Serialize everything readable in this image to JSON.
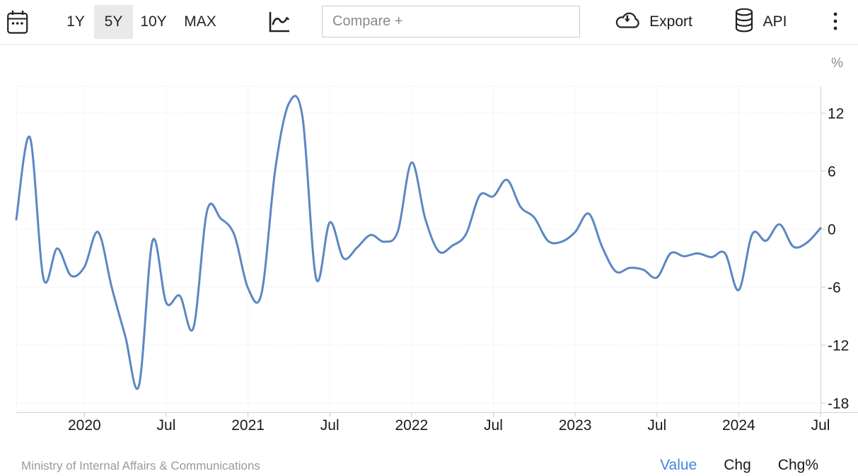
{
  "toolbar": {
    "range_buttons": [
      {
        "label": "1Y",
        "selected": false
      },
      {
        "label": "5Y",
        "selected": true
      },
      {
        "label": "10Y",
        "selected": false
      },
      {
        "label": "MAX",
        "selected": false
      }
    ],
    "compare_placeholder": "Compare +",
    "export_label": "Export",
    "api_label": "API",
    "icons": [
      "calendar-icon",
      "line-chart-icon",
      "cloud-download-icon",
      "database-icon",
      "kebab-menu-icon"
    ]
  },
  "footer": {
    "source": "Ministry of Internal Affairs & Communications",
    "links": [
      {
        "label": "Value",
        "active": true
      },
      {
        "label": "Chg",
        "active": false
      },
      {
        "label": "Chg%",
        "active": false
      }
    ]
  },
  "colors": {
    "line": "#5b87c3",
    "accent_blue": "#4285e0",
    "grid": "#dcdcdc",
    "axis": "#d2d2d2",
    "tick_text": "#1a1a1a",
    "unit_text": "#8f8f8f",
    "selected_range_bg": "#e9e9e9"
  },
  "chart_data": {
    "type": "line",
    "title": "",
    "unit": "%",
    "line_color": "#5b87c3",
    "legend": "none",
    "grid": "dotted",
    "y_axis_side": "right",
    "ylim": [
      -19,
      14.8
    ],
    "y_ticks": [
      12,
      6,
      0,
      -6,
      -12,
      -18
    ],
    "x_tick_labels": [
      "2020",
      "Jul",
      "2021",
      "Jul",
      "2022",
      "Jul",
      "2023",
      "Jul",
      "2024",
      "Jul"
    ],
    "x": [
      "2019-08",
      "2019-09",
      "2019-10",
      "2019-11",
      "2019-12",
      "2020-01",
      "2020-02",
      "2020-03",
      "2020-04",
      "2020-05",
      "2020-06",
      "2020-07",
      "2020-08",
      "2020-09",
      "2020-10",
      "2020-11",
      "2020-12",
      "2021-01",
      "2021-02",
      "2021-03",
      "2021-04",
      "2021-05",
      "2021-06",
      "2021-07",
      "2021-08",
      "2021-09",
      "2021-10",
      "2021-11",
      "2021-12",
      "2022-01",
      "2022-02",
      "2022-03",
      "2022-04",
      "2022-05",
      "2022-06",
      "2022-07",
      "2022-08",
      "2022-09",
      "2022-10",
      "2022-11",
      "2022-12",
      "2023-01",
      "2023-02",
      "2023-03",
      "2023-04",
      "2023-05",
      "2023-06",
      "2023-07",
      "2023-08",
      "2023-09",
      "2023-10",
      "2023-11",
      "2023-12",
      "2024-01",
      "2024-02",
      "2024-03",
      "2024-04",
      "2024-05",
      "2024-06",
      "2024-07"
    ],
    "values": [
      1.0,
      9.5,
      -5.1,
      -2.0,
      -4.8,
      -3.9,
      -0.3,
      -6.0,
      -11.1,
      -16.2,
      -1.2,
      -7.6,
      -6.9,
      -10.2,
      1.9,
      1.1,
      -0.6,
      -6.1,
      -6.6,
      6.2,
      13.0,
      11.6,
      -5.1,
      0.7,
      -3.0,
      -1.9,
      -0.6,
      -1.3,
      -0.2,
      6.9,
      1.1,
      -2.3,
      -1.7,
      -0.5,
      3.5,
      3.4,
      5.1,
      2.3,
      1.2,
      -1.2,
      -1.3,
      -0.3,
      1.6,
      -1.9,
      -4.4,
      -4.0,
      -4.2,
      -5.0,
      -2.5,
      -2.8,
      -2.5,
      -2.9,
      -2.5,
      -6.3,
      -0.5,
      -1.2,
      0.5,
      -1.8,
      -1.4,
      0.1
    ]
  }
}
